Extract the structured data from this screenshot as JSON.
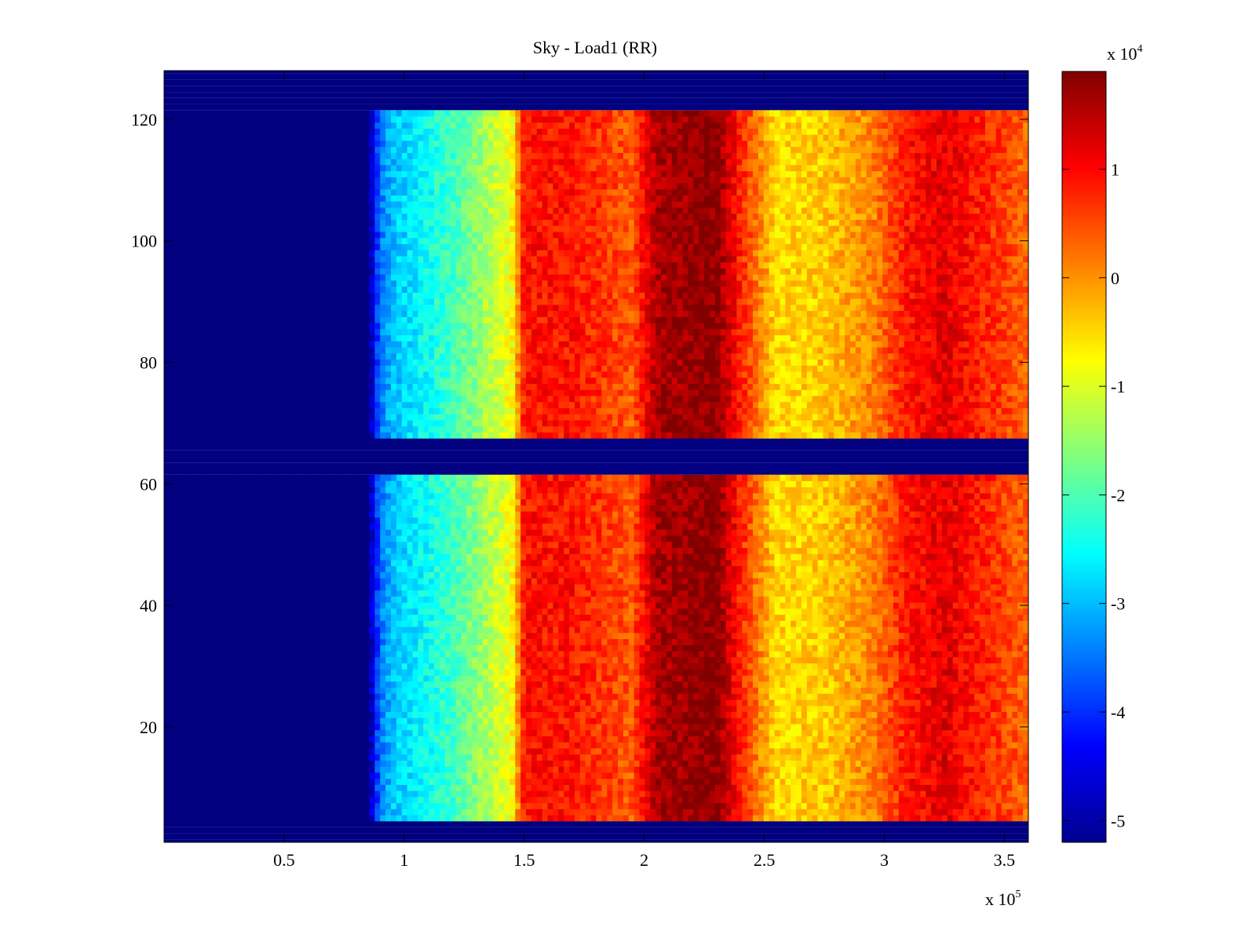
{
  "chart_data": {
    "type": "heatmap",
    "title": "Sky - Load1 (RR)",
    "xlabel": "",
    "ylabel": "",
    "x_multiplier_label": "x 10",
    "x_multiplier_exponent": "5",
    "xlim": [
      0,
      3.6
    ],
    "ylim": [
      1,
      128
    ],
    "xticks": [
      0.5,
      1,
      1.5,
      2,
      2.5,
      3,
      3.5
    ],
    "xtick_labels": [
      "0.5",
      "1",
      "1.5",
      "2",
      "2.5",
      "3",
      "3.5"
    ],
    "yticks": [
      20,
      40,
      60,
      80,
      100,
      120
    ],
    "ytick_labels": [
      "20",
      "40",
      "60",
      "80",
      "100",
      "120"
    ],
    "colorbar": {
      "multiplier_label": "x 10",
      "multiplier_exponent": "4",
      "clim": [
        -5.2,
        1.9
      ],
      "ticks": [
        1,
        0,
        -1,
        -2,
        -3,
        -4,
        -5
      ],
      "tick_labels": [
        "1",
        "0",
        "-1",
        "-2",
        "-3",
        "-4",
        "-5"
      ],
      "colormap": "jet"
    },
    "masked_rows": [
      [
        1,
        4
      ],
      [
        62,
        67
      ],
      [
        122,
        128
      ]
    ],
    "bright_row": 4,
    "intensity_profile_x": [
      0,
      0.85,
      0.9,
      0.95,
      1.2,
      1.45,
      1.5,
      1.7,
      1.95,
      2.05,
      2.3,
      2.4,
      2.55,
      2.75,
      2.95,
      3.1,
      3.25,
      3.6
    ],
    "intensity_profile_value": [
      -5.2,
      -5.2,
      -3.5,
      -3.0,
      -2.1,
      -0.8,
      0.9,
      0.9,
      0.4,
      1.6,
      1.85,
      0.8,
      -0.5,
      -0.4,
      0.1,
      0.9,
      1.2,
      0.3
    ],
    "grid": false,
    "legend": "none"
  }
}
